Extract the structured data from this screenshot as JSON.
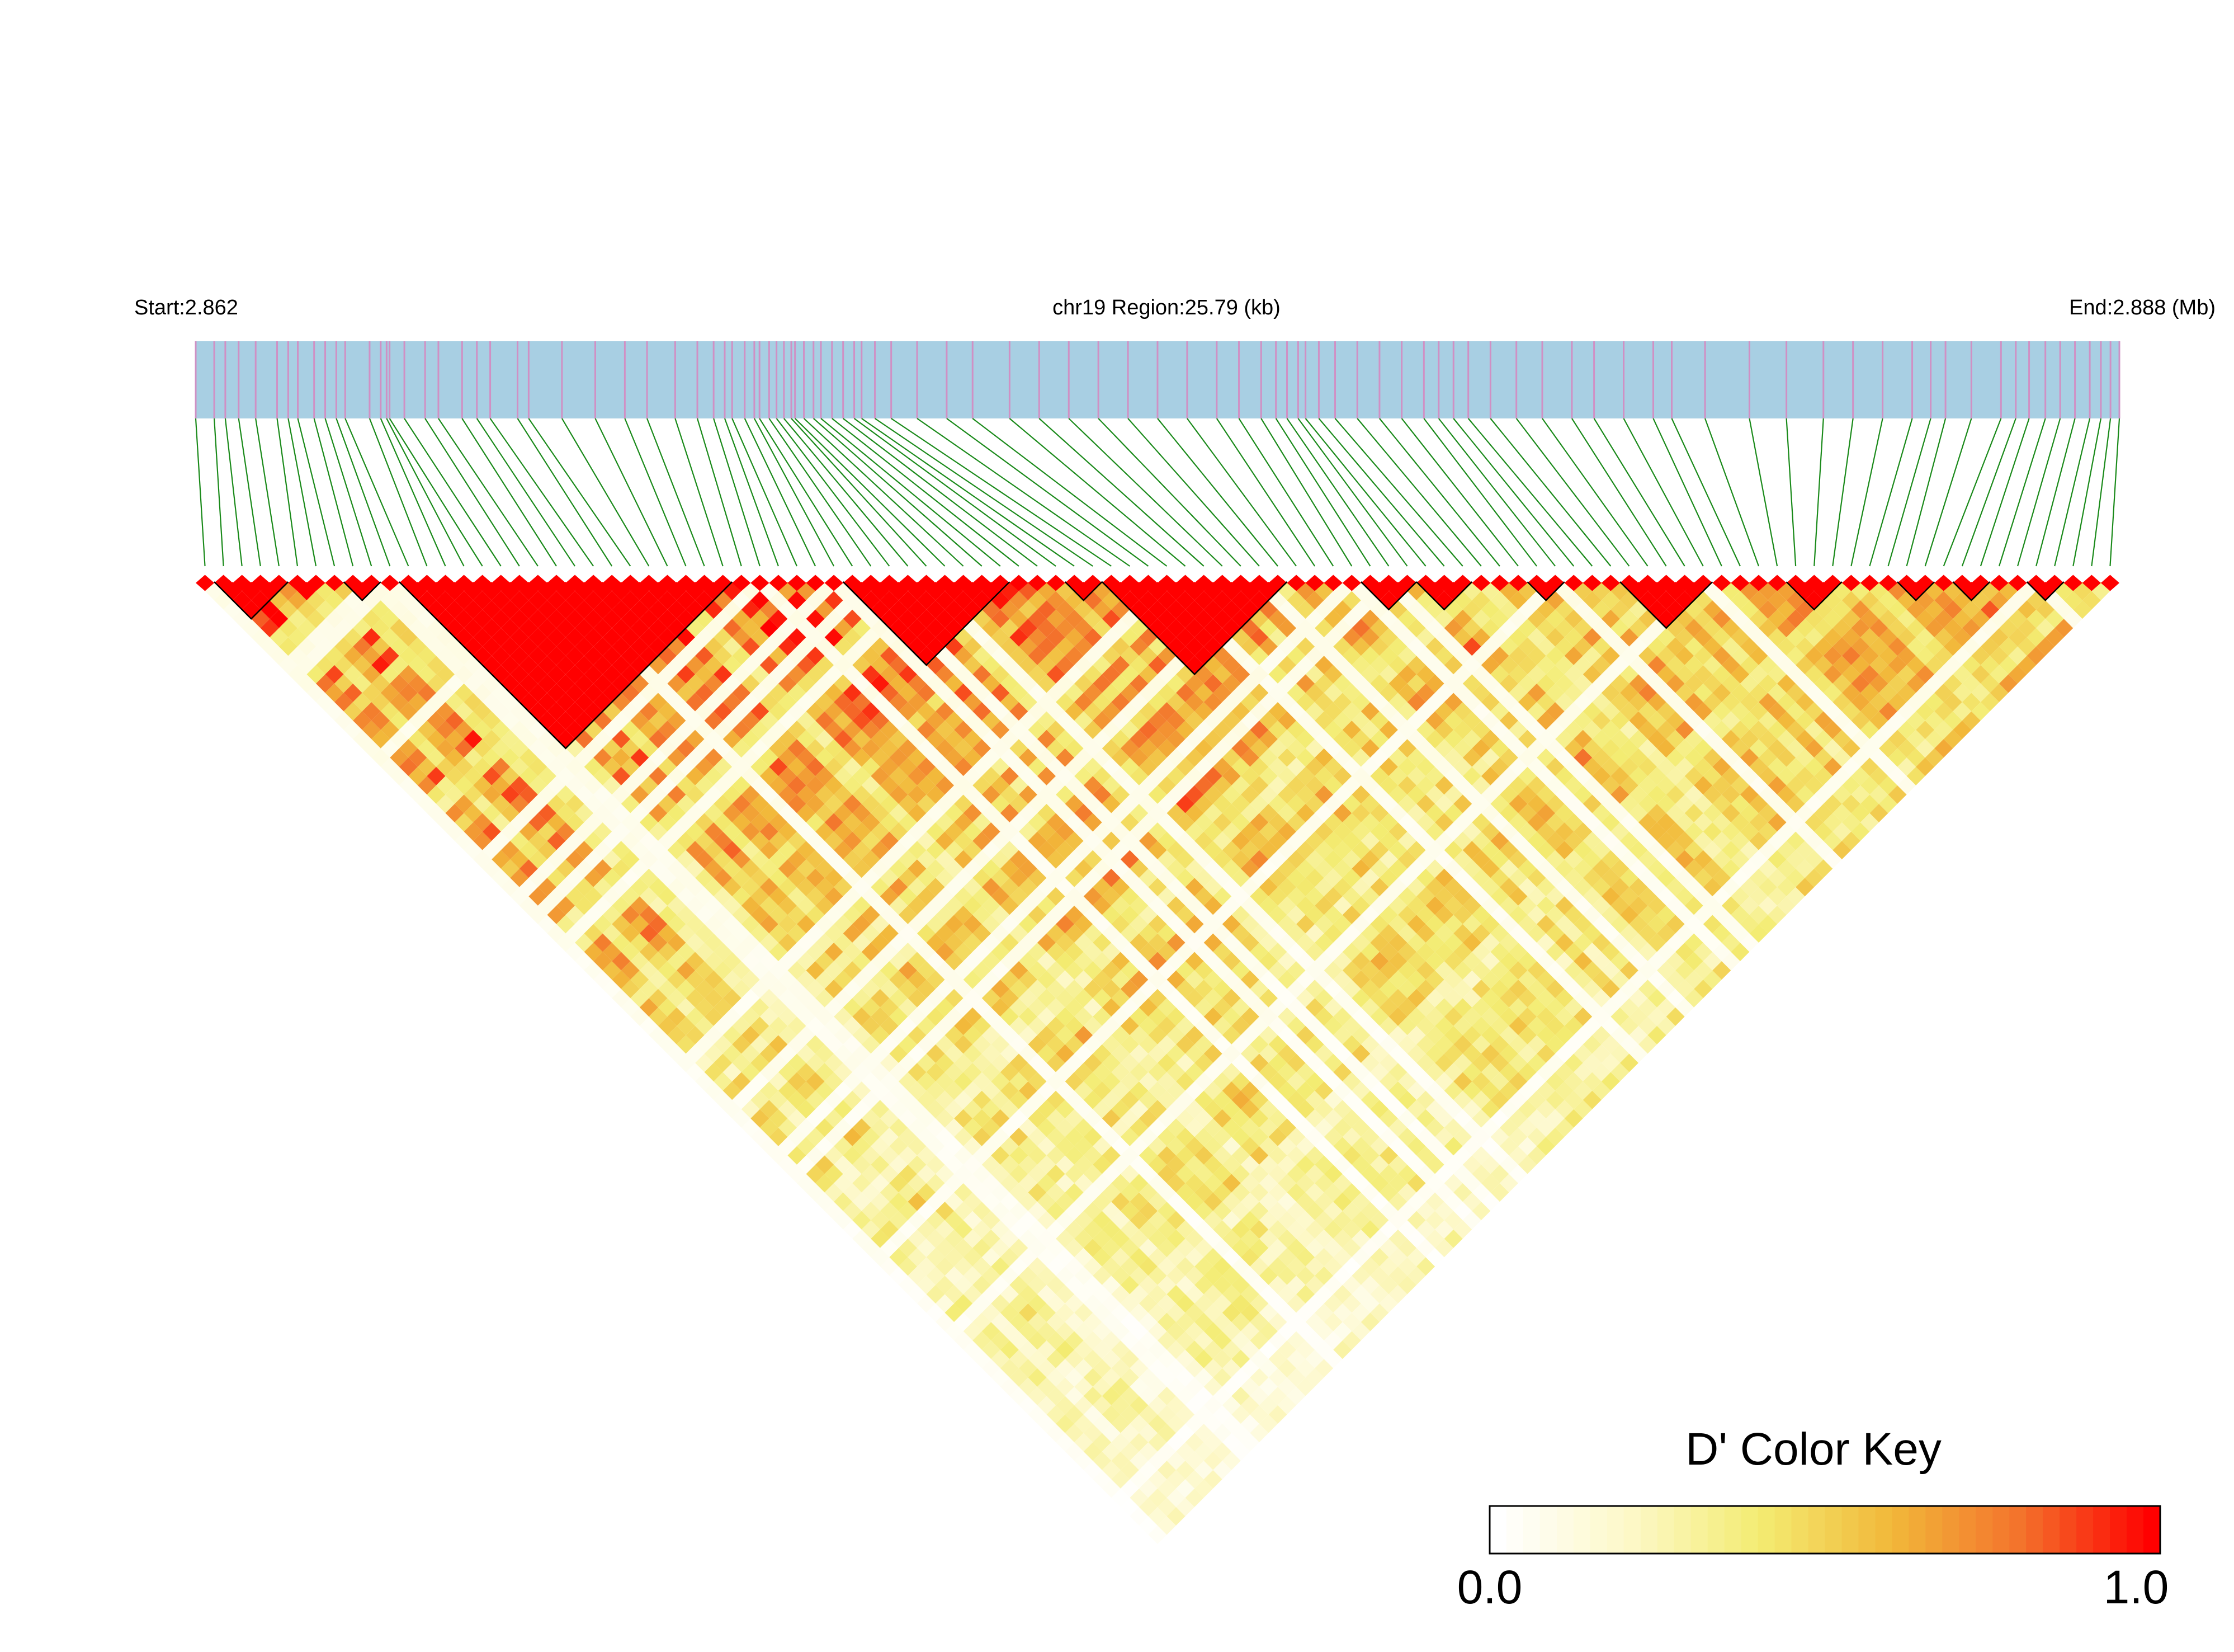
{
  "header": {
    "start_label": "Start:2.862",
    "region_label": "chr19 Region:25.79 (kb)",
    "end_label": "End:2.888 (Mb)"
  },
  "colors": {
    "region_bar": "#a8cfe3",
    "snp_tick": "#d090c4",
    "connector_line": "#1a8a1a",
    "ld_scale": [
      "#ffffff",
      "#fdf8c8",
      "#f3ec72",
      "#f2b83a",
      "#f3722c",
      "#ff0000"
    ],
    "block_outline": "#000000"
  },
  "chart_data": {
    "type": "heatmap",
    "title": "",
    "metric": "D'",
    "chromosome": "chr19",
    "region_start_mb": 2.862,
    "region_end_mb": 2.888,
    "region_length_kb": 25.79,
    "snp_count": 104,
    "snp_positions_mb": [
      2.862,
      2.86225,
      2.8624,
      2.86258,
      2.86281,
      2.8631,
      2.86325,
      2.86338,
      2.8636,
      2.86375,
      2.8639,
      2.86402,
      2.86435,
      2.8645,
      2.86458,
      2.86462,
      2.86482,
      2.8651,
      2.86528,
      2.8656,
      2.8658,
      2.86598,
      2.86635,
      2.8665,
      2.86695,
      2.8674,
      2.8678,
      2.8681,
      2.86848,
      2.86878,
      2.869,
      2.86915,
      2.86925,
      2.86942,
      2.86955,
      2.86962,
      2.86975,
      2.86985,
      2.86995,
      2.87005,
      2.8701,
      2.87022,
      2.87035,
      2.87045,
      2.8706,
      2.87075,
      2.8709,
      2.871,
      2.87118,
      2.8714,
      2.87175,
      2.87215,
      2.8725,
      2.873,
      2.8734,
      2.8738,
      2.8742,
      2.8746,
      2.875,
      2.8754,
      2.8758,
      2.8761,
      2.8764,
      2.8766,
      2.87675,
      2.8769,
      2.877,
      2.87718,
      2.8774,
      2.8777,
      2.878,
      2.8783,
      2.8786,
      2.8788,
      2.879,
      2.8792,
      2.8795,
      2.87985,
      2.8802,
      2.8806,
      2.8809,
      2.8813,
      2.8817,
      2.88195,
      2.8824,
      2.883,
      2.8835,
      2.884,
      2.8844,
      2.8848,
      2.8852,
      2.88545,
      2.88565,
      2.886,
      2.8864,
      2.8866,
      2.88678,
      2.887,
      2.8872,
      2.8874,
      2.8876,
      2.88775,
      2.88788,
      2.888
    ],
    "blocks": [
      {
        "first_snp": 1,
        "last_snp": 4
      },
      {
        "first_snp": 8,
        "last_snp": 9
      },
      {
        "first_snp": 11,
        "last_snp": 28
      },
      {
        "first_snp": 35,
        "last_snp": 43
      },
      {
        "first_snp": 47,
        "last_snp": 48
      },
      {
        "first_snp": 49,
        "last_snp": 58
      },
      {
        "first_snp": 63,
        "last_snp": 65
      },
      {
        "first_snp": 66,
        "last_snp": 68
      },
      {
        "first_snp": 72,
        "last_snp": 73
      },
      {
        "first_snp": 77,
        "last_snp": 81
      },
      {
        "first_snp": 86,
        "last_snp": 88
      },
      {
        "first_snp": 92,
        "last_snp": 93
      },
      {
        "first_snp": 95,
        "last_snp": 96
      },
      {
        "first_snp": 99,
        "last_snp": 100
      }
    ],
    "color_key": {
      "title": "D' Color Key",
      "min": 0.0,
      "max": 1.0,
      "min_label": "0.0",
      "max_label": "1.0"
    }
  }
}
